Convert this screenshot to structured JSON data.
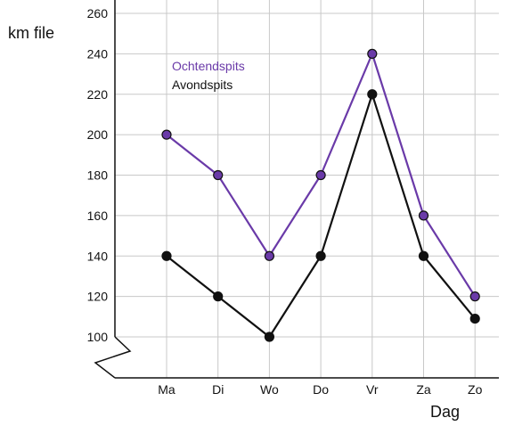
{
  "chart_data": {
    "type": "line",
    "title": "",
    "ylabel": "km file",
    "xlabel": "Dag",
    "categories": [
      "Ma",
      "Di",
      "Wo",
      "Do",
      "Vr",
      "Za",
      "Zo"
    ],
    "y_ticks": [
      100,
      120,
      140,
      160,
      180,
      200,
      220,
      240,
      260
    ],
    "ylim": [
      100,
      260
    ],
    "y_axis_break": true,
    "grid": true,
    "legend_position": "top-left",
    "series": [
      {
        "name": "Ochtendspits",
        "color": "#6a3aa8",
        "values": [
          200,
          180,
          140,
          180,
          240,
          160,
          120
        ]
      },
      {
        "name": "Avondspits",
        "color": "#111111",
        "values": [
          140,
          120,
          100,
          140,
          220,
          140,
          109
        ]
      }
    ]
  }
}
